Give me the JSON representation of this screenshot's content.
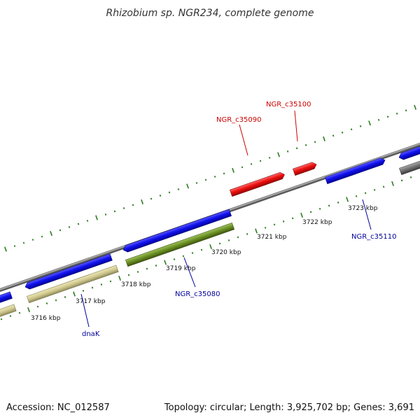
{
  "title": "Rhizobium sp. NGR234, complete genome",
  "footer": {
    "accession": "Accession: NC_012587",
    "summary": "Topology: circular; Length: 3,925,702 bp; Genes: 3,691"
  },
  "ticks": [
    {
      "label": "3716 kbp"
    },
    {
      "label": "3717 kbp"
    },
    {
      "label": "3718 kbp"
    },
    {
      "label": "3719 kbp"
    },
    {
      "label": "3720 kbp"
    },
    {
      "label": "3721 kbp"
    },
    {
      "label": "3722 kbp"
    },
    {
      "label": "3723 kbp"
    }
  ],
  "gene_labels": [
    {
      "text": "NGR_c35100",
      "color": "#cc0000"
    },
    {
      "text": "NGR_c35090",
      "color": "#cc0000"
    },
    {
      "text": "NGR_c35110",
      "color": "#000099"
    },
    {
      "text": "NGR_c35080",
      "color": "#000099"
    },
    {
      "text": "dnaK",
      "color": "#000099"
    }
  ],
  "colors": {
    "forward_cds": "#1010e8",
    "reverse_cds": "#ee1111",
    "gene_khaki": "#cfc88e",
    "gene_green": "#6a8e22",
    "gene_grey": "#707070",
    "backbone": "#8c8c8c",
    "tick_green": "#2e7d22"
  }
}
